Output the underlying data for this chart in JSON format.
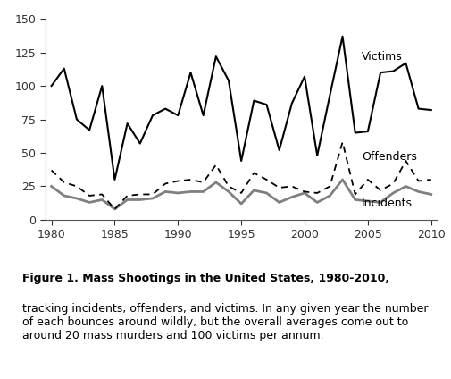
{
  "years": [
    1980,
    1981,
    1982,
    1983,
    1984,
    1985,
    1986,
    1987,
    1988,
    1989,
    1990,
    1991,
    1992,
    1993,
    1994,
    1995,
    1996,
    1997,
    1998,
    1999,
    2000,
    2001,
    2002,
    2003,
    2004,
    2005,
    2006,
    2007,
    2008,
    2009,
    2010
  ],
  "victims": [
    100,
    113,
    75,
    67,
    100,
    30,
    72,
    57,
    78,
    83,
    78,
    110,
    78,
    122,
    104,
    44,
    89,
    86,
    52,
    87,
    107,
    48,
    93,
    137,
    65,
    66,
    110,
    111,
    117,
    83,
    82
  ],
  "offenders": [
    37,
    28,
    25,
    18,
    19,
    8,
    18,
    19,
    19,
    27,
    29,
    30,
    28,
    41,
    25,
    20,
    35,
    30,
    24,
    25,
    21,
    20,
    25,
    58,
    19,
    30,
    22,
    27,
    44,
    29,
    30
  ],
  "incidents": [
    25,
    18,
    16,
    13,
    15,
    8,
    15,
    15,
    16,
    21,
    20,
    21,
    21,
    28,
    21,
    12,
    22,
    20,
    13,
    17,
    20,
    13,
    18,
    30,
    15,
    14,
    13,
    20,
    25,
    21,
    19
  ],
  "xlim": [
    1979.5,
    2010.5
  ],
  "ylim": [
    0,
    150
  ],
  "yticks": [
    0,
    25,
    50,
    75,
    100,
    125,
    150
  ],
  "xticks": [
    1980,
    1985,
    1990,
    1995,
    2000,
    2005,
    2010
  ],
  "title_bold": "Figure 1. Mass Shootings in the United States, 1980-2010,",
  "title_normal": "tracking incidents, offenders, and victims. In any given year the number\nof each bounces around wildly, but the overall averages come out to\naround 20 mass murders and 100 victims per annum.",
  "victims_color": "#000000",
  "offenders_color": "#000000",
  "incidents_color": "#808080",
  "label_victims": "Victims",
  "label_offenders": "Offenders",
  "label_incidents": "Incidents"
}
